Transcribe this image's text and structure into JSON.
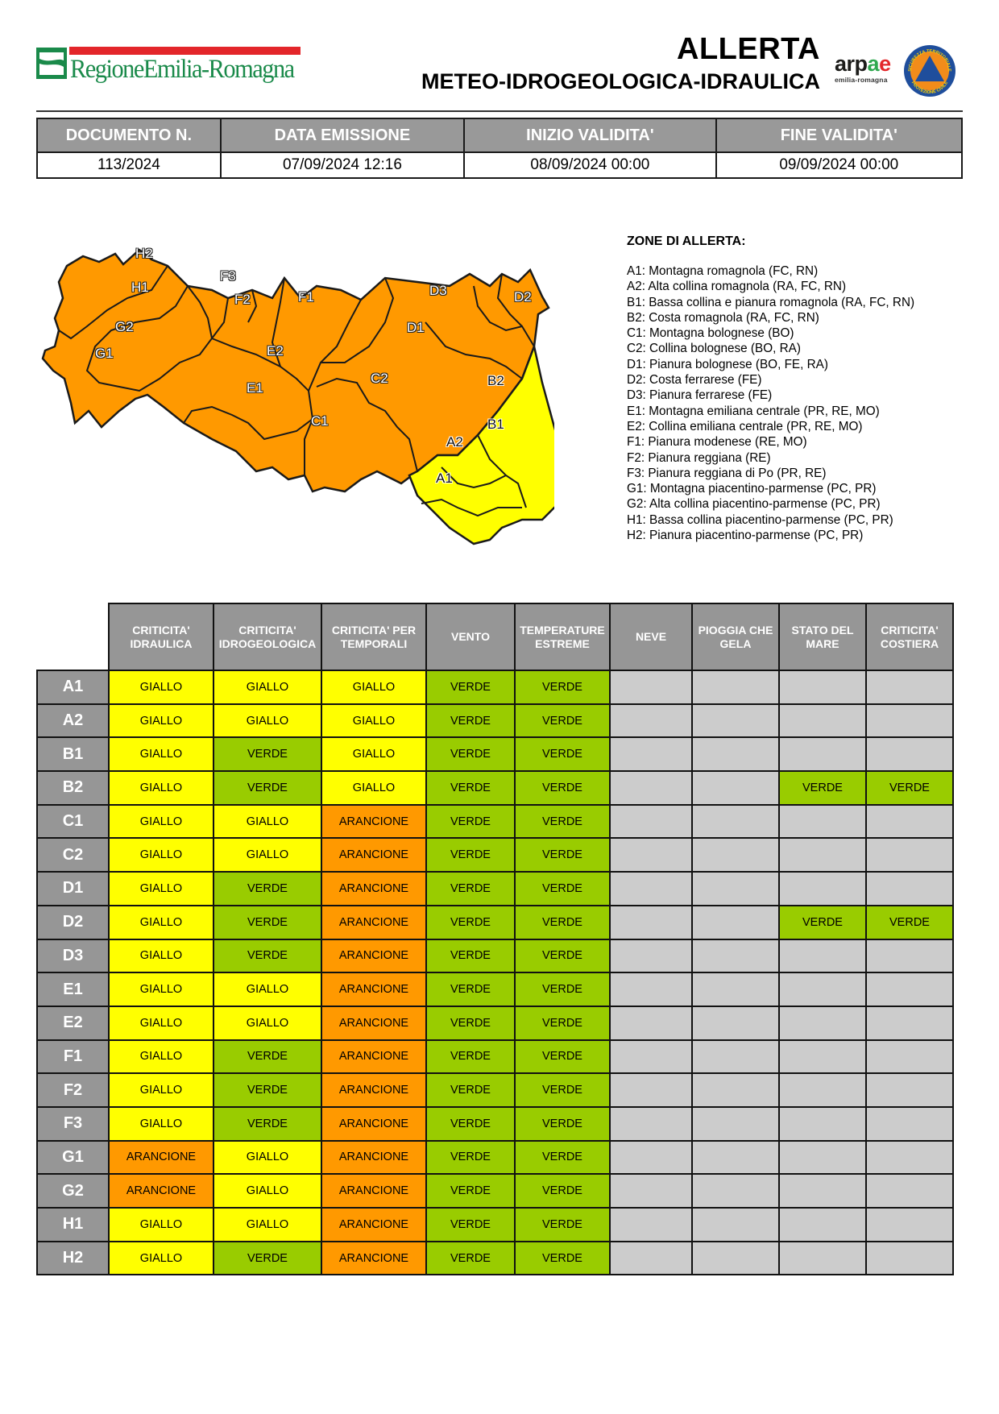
{
  "header": {
    "region_logo_text": "RegioneEmilia-Romagna",
    "title": "ALLERTA",
    "subtitle": "METEO-IDROGEOLOGICA-IDRAULICA",
    "arpae_logo": {
      "text": "arpae",
      "subtext": "emilia-romagna"
    },
    "civil_protection_logo": {
      "top_text": "SICUREZZA TERRITORIALE",
      "bottom_text": "PROTEZIONE CIVILE"
    }
  },
  "meta": {
    "headers": [
      "DOCUMENTO N.",
      "DATA EMISSIONE",
      "INIZIO VALIDITA'",
      "FINE VALIDITA'"
    ],
    "values": [
      "113/2024",
      "07/09/2024 12:16",
      "08/09/2024 00:00",
      "09/09/2024 00:00"
    ]
  },
  "map": {
    "labels": [
      "H2",
      "H1",
      "G2",
      "G1",
      "F3",
      "F2",
      "F1",
      "E2",
      "E1",
      "D3",
      "D2",
      "D1",
      "C2",
      "C1",
      "B2",
      "B1",
      "A2",
      "A1"
    ],
    "colors": {
      "arancione": "#ff9900",
      "giallo": "#ffff00"
    }
  },
  "zones": {
    "title": "ZONE DI ALLERTA:",
    "items": [
      "A1: Montagna romagnola (FC, RN)",
      "A2: Alta collina romagnola (RA, FC, RN)",
      "B1: Bassa collina e pianura romagnola (RA, FC, RN)",
      "B2: Costa romagnola (RA, FC, RN)",
      "C1: Montagna bolognese (BO)",
      "C2: Collina bolognese (BO, RA)",
      "D1: Pianura bolognese (BO, FE, RA)",
      "D2: Costa ferrarese (FE)",
      "D3: Pianura ferrarese (FE)",
      "E1: Montagna emiliana centrale (PR, RE, MO)",
      "E2: Collina emiliana centrale (PR, RE, MO)",
      "F1: Pianura modenese (RE, MO)",
      "F2: Pianura reggiana (RE)",
      "F3: Pianura reggiana di Po (PR, RE)",
      "G1: Montagna piacentino-parmense (PC, PR)",
      "G2: Alta collina piacentino-parmense (PC, PR)",
      "H1: Bassa collina piacentino-parmense (PC, PR)",
      "H2: Pianura piacentino-parmense (PC, PR)"
    ]
  },
  "level_colors": {
    "GIALLO": "#ffff00",
    "VERDE": "#99cc00",
    "ARANCIONE": "#ff9900",
    "NONE": "#cccccc"
  },
  "alert_table": {
    "columns": [
      [
        "CRITICITA'",
        "IDRAULICA"
      ],
      [
        "CRITICITA'",
        "IDROGEOLOGICA"
      ],
      [
        "CRITICITA' PER",
        "TEMPORALI"
      ],
      [
        "VENTO",
        ""
      ],
      [
        "TEMPERATURE",
        "ESTREME"
      ],
      [
        "NEVE",
        ""
      ],
      [
        "PIOGGIA CHE",
        "GELA"
      ],
      [
        "STATO DEL",
        "MARE"
      ],
      [
        "CRITICITA'",
        "COSTIERA"
      ]
    ],
    "rows": [
      {
        "zone": "A1",
        "values": [
          "GIALLO",
          "GIALLO",
          "GIALLO",
          "VERDE",
          "VERDE",
          "",
          "",
          "",
          ""
        ]
      },
      {
        "zone": "A2",
        "values": [
          "GIALLO",
          "GIALLO",
          "GIALLO",
          "VERDE",
          "VERDE",
          "",
          "",
          "",
          ""
        ]
      },
      {
        "zone": "B1",
        "values": [
          "GIALLO",
          "VERDE",
          "GIALLO",
          "VERDE",
          "VERDE",
          "",
          "",
          "",
          ""
        ]
      },
      {
        "zone": "B2",
        "values": [
          "GIALLO",
          "VERDE",
          "GIALLO",
          "VERDE",
          "VERDE",
          "",
          "",
          "VERDE",
          "VERDE"
        ]
      },
      {
        "zone": "C1",
        "values": [
          "GIALLO",
          "GIALLO",
          "ARANCIONE",
          "VERDE",
          "VERDE",
          "",
          "",
          "",
          ""
        ]
      },
      {
        "zone": "C2",
        "values": [
          "GIALLO",
          "GIALLO",
          "ARANCIONE",
          "VERDE",
          "VERDE",
          "",
          "",
          "",
          ""
        ]
      },
      {
        "zone": "D1",
        "values": [
          "GIALLO",
          "VERDE",
          "ARANCIONE",
          "VERDE",
          "VERDE",
          "",
          "",
          "",
          ""
        ]
      },
      {
        "zone": "D2",
        "values": [
          "GIALLO",
          "VERDE",
          "ARANCIONE",
          "VERDE",
          "VERDE",
          "",
          "",
          "VERDE",
          "VERDE"
        ]
      },
      {
        "zone": "D3",
        "values": [
          "GIALLO",
          "VERDE",
          "ARANCIONE",
          "VERDE",
          "VERDE",
          "",
          "",
          "",
          ""
        ]
      },
      {
        "zone": "E1",
        "values": [
          "GIALLO",
          "GIALLO",
          "ARANCIONE",
          "VERDE",
          "VERDE",
          "",
          "",
          "",
          ""
        ]
      },
      {
        "zone": "E2",
        "values": [
          "GIALLO",
          "GIALLO",
          "ARANCIONE",
          "VERDE",
          "VERDE",
          "",
          "",
          "",
          ""
        ]
      },
      {
        "zone": "F1",
        "values": [
          "GIALLO",
          "VERDE",
          "ARANCIONE",
          "VERDE",
          "VERDE",
          "",
          "",
          "",
          ""
        ]
      },
      {
        "zone": "F2",
        "values": [
          "GIALLO",
          "VERDE",
          "ARANCIONE",
          "VERDE",
          "VERDE",
          "",
          "",
          "",
          ""
        ]
      },
      {
        "zone": "F3",
        "values": [
          "GIALLO",
          "VERDE",
          "ARANCIONE",
          "VERDE",
          "VERDE",
          "",
          "",
          "",
          ""
        ]
      },
      {
        "zone": "G1",
        "values": [
          "ARANCIONE",
          "GIALLO",
          "ARANCIONE",
          "VERDE",
          "VERDE",
          "",
          "",
          "",
          ""
        ]
      },
      {
        "zone": "G2",
        "values": [
          "ARANCIONE",
          "GIALLO",
          "ARANCIONE",
          "VERDE",
          "VERDE",
          "",
          "",
          "",
          ""
        ]
      },
      {
        "zone": "H1",
        "values": [
          "GIALLO",
          "GIALLO",
          "ARANCIONE",
          "VERDE",
          "VERDE",
          "",
          "",
          "",
          ""
        ]
      },
      {
        "zone": "H2",
        "values": [
          "GIALLO",
          "VERDE",
          "ARANCIONE",
          "VERDE",
          "VERDE",
          "",
          "",
          "",
          ""
        ]
      }
    ]
  }
}
